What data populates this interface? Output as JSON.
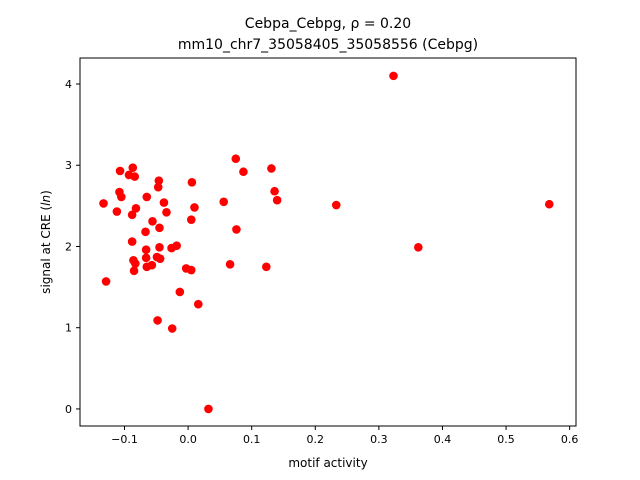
{
  "chart_data": {
    "type": "scatter",
    "title_line1": "Cebpa_Cebpg, ρ = 0.20",
    "title_line2": "mm10_chr7_35058405_35058556 (Cebpg)",
    "xlabel": "motif activity",
    "ylabel_prefix": "signal at CRE (",
    "ylabel_italic": "ln",
    "ylabel_suffix": ")",
    "xlim": [
      -0.17,
      0.61
    ],
    "ylim": [
      -0.21,
      4.32
    ],
    "xticks": [
      -0.1,
      0.0,
      0.1,
      0.2,
      0.3,
      0.4,
      0.5,
      0.6
    ],
    "xtick_labels": [
      "−0.1",
      "0.0",
      "0.1",
      "0.2",
      "0.3",
      "0.4",
      "0.5",
      "0.6"
    ],
    "yticks": [
      0,
      1,
      2,
      3,
      4
    ],
    "ytick_labels": [
      "0",
      "1",
      "2",
      "3",
      "4"
    ],
    "grid": false,
    "marker_color": "#ff0000",
    "points": [
      {
        "x": 0.323,
        "y": 4.1
      },
      {
        "x": 0.568,
        "y": 2.52
      },
      {
        "x": 0.233,
        "y": 2.51
      },
      {
        "x": 0.362,
        "y": 1.99
      },
      {
        "x": 0.075,
        "y": 3.08
      },
      {
        "x": 0.087,
        "y": 2.92
      },
      {
        "x": 0.131,
        "y": 2.96
      },
      {
        "x": 0.136,
        "y": 2.68
      },
      {
        "x": 0.14,
        "y": 2.57
      },
      {
        "x": 0.056,
        "y": 2.55
      },
      {
        "x": 0.076,
        "y": 2.21
      },
      {
        "x": 0.066,
        "y": 1.78
      },
      {
        "x": 0.123,
        "y": 1.75
      },
      {
        "x": 0.006,
        "y": 2.79
      },
      {
        "x": 0.01,
        "y": 2.48
      },
      {
        "x": 0.005,
        "y": 2.33
      },
      {
        "x": -0.003,
        "y": 1.73
      },
      {
        "x": 0.005,
        "y": 1.71
      },
      {
        "x": 0.016,
        "y": 1.29
      },
      {
        "x": 0.032,
        "y": 0.0
      },
      {
        "x": -0.025,
        "y": 0.99
      },
      {
        "x": -0.048,
        "y": 1.09
      },
      {
        "x": -0.013,
        "y": 1.44
      },
      {
        "x": -0.133,
        "y": 2.53
      },
      {
        "x": -0.129,
        "y": 1.57
      },
      {
        "x": -0.112,
        "y": 2.43
      },
      {
        "x": -0.108,
        "y": 2.67
      },
      {
        "x": -0.105,
        "y": 2.61
      },
      {
        "x": -0.107,
        "y": 2.93
      },
      {
        "x": -0.093,
        "y": 2.88
      },
      {
        "x": -0.087,
        "y": 2.97
      },
      {
        "x": -0.084,
        "y": 2.86
      },
      {
        "x": -0.088,
        "y": 2.39
      },
      {
        "x": -0.082,
        "y": 2.47
      },
      {
        "x": -0.088,
        "y": 2.06
      },
      {
        "x": -0.086,
        "y": 1.83
      },
      {
        "x": -0.083,
        "y": 1.79
      },
      {
        "x": -0.085,
        "y": 1.7
      },
      {
        "x": -0.065,
        "y": 2.61
      },
      {
        "x": -0.056,
        "y": 2.31
      },
      {
        "x": -0.067,
        "y": 2.18
      },
      {
        "x": -0.066,
        "y": 1.96
      },
      {
        "x": -0.066,
        "y": 1.86
      },
      {
        "x": -0.065,
        "y": 1.75
      },
      {
        "x": -0.057,
        "y": 1.77
      },
      {
        "x": -0.046,
        "y": 2.81
      },
      {
        "x": -0.047,
        "y": 2.73
      },
      {
        "x": -0.038,
        "y": 2.54
      },
      {
        "x": -0.034,
        "y": 2.42
      },
      {
        "x": -0.045,
        "y": 2.23
      },
      {
        "x": -0.045,
        "y": 1.99
      },
      {
        "x": -0.049,
        "y": 1.87
      },
      {
        "x": -0.044,
        "y": 1.85
      },
      {
        "x": -0.026,
        "y": 1.98
      },
      {
        "x": -0.018,
        "y": 2.01
      }
    ]
  }
}
